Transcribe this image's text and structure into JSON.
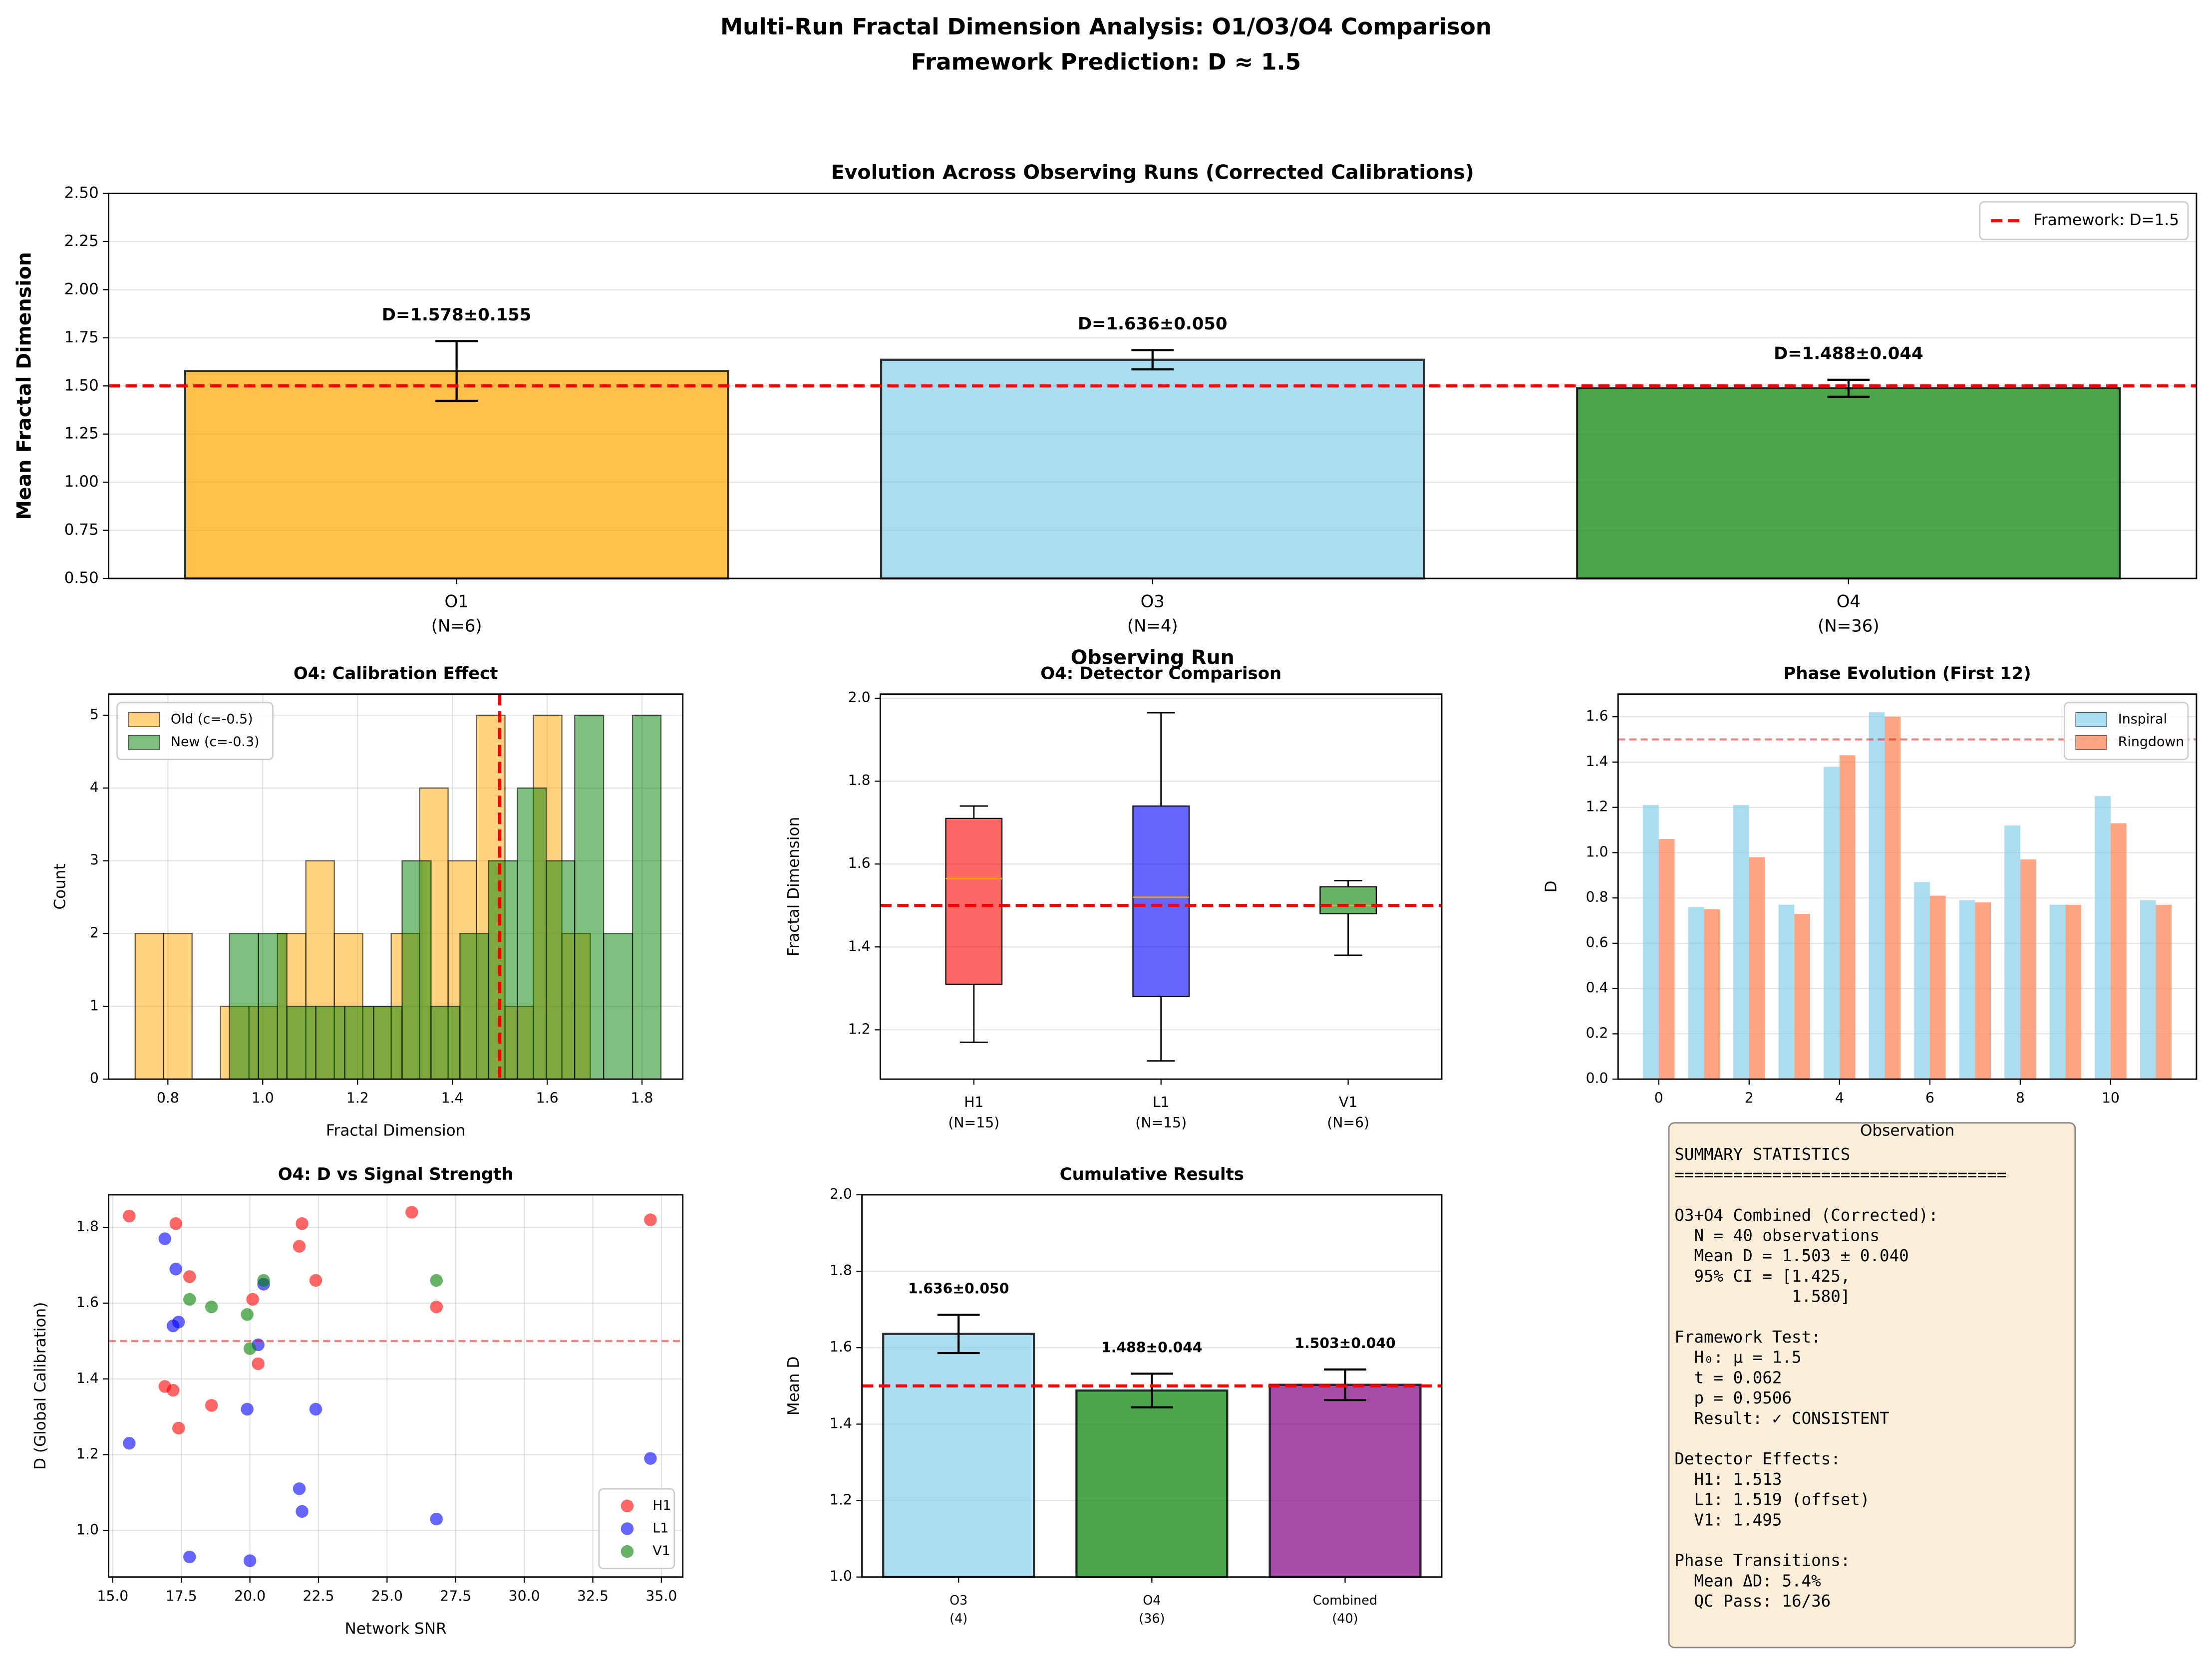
{
  "suptitle": [
    "Multi-Run Fractal Dimension Analysis: O1/O3/O4 Comparison",
    "Framework Prediction: D ≈ 1.5"
  ],
  "chart_data": [
    {
      "type": "bar",
      "title": "Evolution Across Observing Runs (Corrected Calibrations)",
      "xlabel": "Observing Run",
      "ylabel": "Mean Fractal Dimension",
      "categories": [
        "O1",
        "O3",
        "O4"
      ],
      "sublabels": [
        "(N=6)",
        "(N=4)",
        "(N=36)"
      ],
      "values": [
        1.578,
        1.636,
        1.488
      ],
      "errors": [
        0.155,
        0.05,
        0.044
      ],
      "value_labels": [
        "D=1.578±0.155",
        "D=1.636±0.050",
        "D=1.488±0.044"
      ],
      "colors": [
        "#FFA500",
        "#87CEEB",
        "#008000"
      ],
      "alpha": 0.7,
      "ylim": [
        0.5,
        2.5
      ],
      "yticks": [
        {
          "value": 0.5,
          "label": "0.50"
        },
        0.75,
        {
          "value": 1,
          "label": "1.00"
        },
        1.25,
        {
          "value": 1.5,
          "label": "1.50"
        },
        1.75,
        {
          "value": 2,
          "label": "2.00"
        },
        2.25,
        {
          "value": 2.5,
          "label": "2.50"
        }
      ],
      "grid": "y",
      "hline": {
        "value": 1.5,
        "label": "Framework: D=1.5",
        "color": "#FF0000",
        "alpha": 1
      },
      "legend": "upper right"
    },
    {
      "type": "histogram",
      "title": "O4: Calibration Effect",
      "xlabel": "Fractal Dimension",
      "ylabel": "Count",
      "alpha": 0.5,
      "series": [
        {
          "name": "Old (c=-0.5)",
          "color": "#FFA500",
          "bins": [
            0.731,
            0.791,
            0.851,
            0.911,
            0.971,
            1.031,
            1.091,
            1.151,
            1.211,
            1.271,
            1.331,
            1.391,
            1.451,
            1.511,
            1.571,
            1.631,
            1.691
          ],
          "counts": [
            2,
            2,
            0,
            1,
            1,
            2,
            3,
            2,
            1,
            2,
            4,
            3,
            5,
            1,
            5,
            2
          ]
        },
        {
          "name": "New (c=-0.3)",
          "color": "#008000",
          "bins": [
            0.93,
            0.991,
            1.051,
            1.112,
            1.173,
            1.234,
            1.294,
            1.355,
            1.416,
            1.476,
            1.537,
            1.598,
            1.658,
            1.719,
            1.78,
            1.84
          ],
          "counts": [
            2,
            2,
            1,
            1,
            1,
            1,
            3,
            1,
            2,
            3,
            4,
            3,
            5,
            2,
            5
          ]
        }
      ],
      "xlim": [
        0.675,
        1.886
      ],
      "xticks": [
        0.8,
        {
          "value": 1,
          "label": "1.0"
        },
        1.2,
        1.4,
        1.6,
        1.8
      ],
      "ylim": [
        0,
        5.29
      ],
      "yticks": [
        0,
        1,
        2,
        3,
        4,
        5
      ],
      "grid": "both",
      "vline": {
        "value": 1.5,
        "color": "#FF0000",
        "alpha": 1
      },
      "legend": "upper left"
    },
    {
      "type": "box",
      "title": "O4: Detector Comparison",
      "ylabel": "Fractal Dimension",
      "categories": [
        "H1",
        "L1",
        "V1"
      ],
      "sublabels": [
        "(N=15)",
        "(N=15)",
        "(N=6)"
      ],
      "boxes": [
        {
          "whislo": 1.17,
          "q1": 1.31,
          "med": 1.565,
          "q3": 1.71,
          "whishi": 1.74
        },
        {
          "whislo": 1.125,
          "q1": 1.28,
          "med": 1.52,
          "q3": 1.74,
          "whishi": 1.965
        },
        {
          "whislo": 1.38,
          "q1": 1.48,
          "med": 1.5,
          "q3": 1.545,
          "whishi": 1.56
        }
      ],
      "colors": [
        "#FF0000",
        "#0000FF",
        "#008000"
      ],
      "alpha": 0.6,
      "ylim": [
        1.081,
        2.01
      ],
      "yticks": [
        1.2,
        1.4,
        1.6,
        1.8,
        {
          "value": 2,
          "label": "2.0"
        }
      ],
      "grid": "y",
      "hline": {
        "value": 1.5,
        "color": "#FF0000",
        "alpha": 1
      }
    },
    {
      "type": "bar",
      "title": "Phase Evolution (First 12)",
      "xlabel": "Observation",
      "ylabel": "D",
      "x": [
        0,
        1,
        2,
        3,
        4,
        5,
        6,
        7,
        8,
        9,
        10,
        11
      ],
      "alpha": 0.7,
      "series": [
        {
          "name": "Inspiral",
          "color": "#87CEEB",
          "values": [
            1.21,
            0.76,
            1.21,
            0.77,
            1.38,
            1.62,
            0.87,
            0.79,
            1.12,
            0.77,
            1.25,
            0.79
          ]
        },
        {
          "name": "Ringdown",
          "color": "#FF7F50",
          "values": [
            1.06,
            0.75,
            0.98,
            0.73,
            1.43,
            1.6,
            0.81,
            0.78,
            0.97,
            0.77,
            1.13,
            0.77
          ]
        }
      ],
      "xlim": [
        -0.9,
        11.9
      ],
      "xticks": [
        0,
        2,
        4,
        6,
        8,
        10
      ],
      "ylim": [
        0,
        1.7
      ],
      "yticks": [
        {
          "value": 0,
          "label": "0.0"
        },
        0.2,
        0.4,
        0.6,
        0.8,
        {
          "value": 1,
          "label": "1.0"
        },
        1.2,
        1.4,
        1.6
      ],
      "grid": "y",
      "hline": {
        "value": 1.5,
        "color": "#FF0000",
        "alpha": 0.5
      },
      "legend": "upper right"
    },
    {
      "type": "scatter",
      "title": "O4: D vs Signal Strength",
      "xlabel": "Network SNR",
      "ylabel": "D (Global Calibration)",
      "alpha": 0.6,
      "series": [
        {
          "name": "H1",
          "color": "#FF0000",
          "x": [
            15.6,
            17.3,
            21.9,
            25.9,
            34.6,
            21.8,
            17.8,
            22.4,
            20.1,
            26.8,
            20.3,
            16.9,
            17.2,
            18.6,
            17.4
          ],
          "y": [
            1.83,
            1.81,
            1.81,
            1.84,
            1.82,
            1.75,
            1.67,
            1.66,
            1.61,
            1.59,
            1.44,
            1.38,
            1.37,
            1.33,
            1.27
          ]
        },
        {
          "name": "L1",
          "color": "#0000FF",
          "x": [
            16.9,
            17.3,
            20.5,
            17.4,
            17.2,
            20.3,
            15.6,
            19.9,
            22.4,
            34.6,
            21.8,
            21.9,
            26.8,
            17.8,
            20.0
          ],
          "y": [
            1.77,
            1.69,
            1.65,
            1.55,
            1.54,
            1.49,
            1.23,
            1.32,
            1.32,
            1.19,
            1.11,
            1.05,
            1.03,
            0.93,
            0.92
          ]
        },
        {
          "name": "V1",
          "color": "#008000",
          "x": [
            17.8,
            18.6,
            19.9,
            20.5,
            26.8,
            20.0
          ],
          "y": [
            1.61,
            1.59,
            1.57,
            1.66,
            1.66,
            1.48
          ]
        }
      ],
      "xlim": [
        14.85,
        35.78
      ],
      "xticks": [
        {
          "value": 15,
          "label": "15.0"
        },
        17.5,
        {
          "value": 20,
          "label": "20.0"
        },
        22.5,
        {
          "value": 25,
          "label": "25.0"
        },
        27.5,
        {
          "value": 30,
          "label": "30.0"
        },
        32.5,
        {
          "value": 35,
          "label": "35.0"
        }
      ],
      "ylim": [
        0.877,
        1.886
      ],
      "yticks": [
        {
          "value": 1,
          "label": "1.0"
        },
        1.2,
        1.4,
        1.6,
        1.8
      ],
      "grid": "both",
      "hline": {
        "value": 1.5,
        "color": "#FF0000",
        "alpha": 0.5
      },
      "legend": "lower right"
    },
    {
      "type": "bar",
      "title": "Cumulative Results",
      "ylabel": "Mean D",
      "categories": [
        "O3",
        "O4",
        "Combined"
      ],
      "sublabels": [
        "(4)",
        "(36)",
        "(40)"
      ],
      "values": [
        1.636,
        1.488,
        1.503
      ],
      "errors": [
        0.05,
        0.044,
        0.04
      ],
      "value_labels": [
        "1.636±0.050",
        "1.488±0.044",
        "1.503±0.040"
      ],
      "colors": [
        "#87CEEB",
        "#008000",
        "#800080"
      ],
      "alpha": 0.7,
      "ylim": [
        1,
        2
      ],
      "yticks": [
        {
          "value": 1,
          "label": "1.0"
        },
        1.2,
        1.4,
        1.6,
        1.8,
        {
          "value": 2,
          "label": "2.0"
        }
      ],
      "grid": "y",
      "hline": {
        "value": 1.5,
        "color": "#FF0000",
        "alpha": 1
      }
    }
  ],
  "summary": {
    "blocks": [
      [
        "SUMMARY STATISTICS",
        "=================================="
      ],
      [
        "O3+O4 Combined (Corrected):",
        "  N = 40 observations",
        "  Mean D = 1.503 ± 0.040",
        "  95% CI = [1.425,",
        "            1.580]"
      ],
      [
        "Framework Test:",
        "  H₀: μ = 1.5",
        "  t = 0.062",
        "  p = 0.9506",
        "  Result: ✓ CONSISTENT"
      ],
      [
        "Detector Effects:",
        "  H1: 1.513",
        "  L1: 1.519 (offset)",
        "  V1: 1.495"
      ],
      [
        "Phase Transitions:",
        "  Mean ΔD: 5.4%",
        "  QC Pass: 16/36"
      ]
    ]
  }
}
